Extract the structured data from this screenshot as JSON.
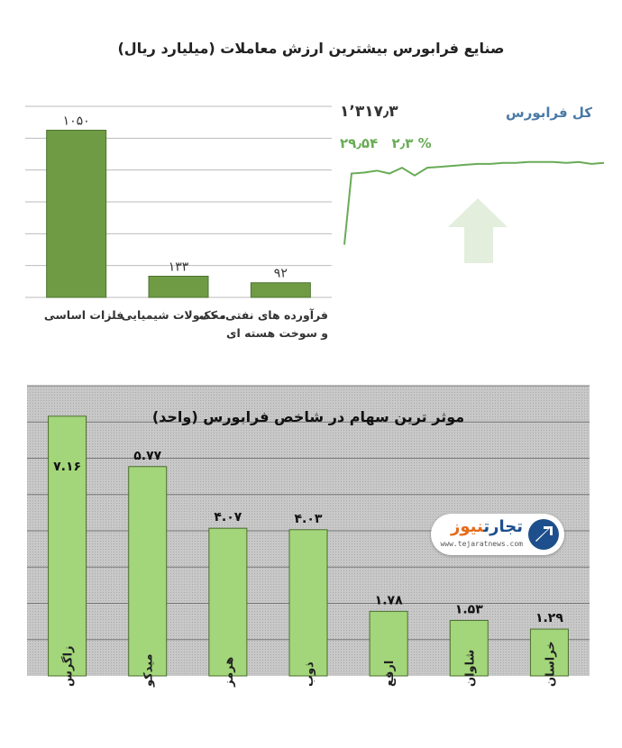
{
  "page_title": "صنایع فرابورس بیشترین ارزش معاملات (میلیارد ریال)",
  "index_panel": {
    "label": "کل فرابورس",
    "value": "۱٬۳۱۷٫۳",
    "change": "۲۹٫۵۴",
    "change_pct": "۲٫۳ %",
    "colors": {
      "line": "#69ab57",
      "arrow": "#e3eedd",
      "label": "#4a79a5"
    }
  },
  "chart_data": [
    {
      "type": "bar",
      "categories": [
        "فلزات اساسی",
        "محصولات شیمیایی",
        "فرآورده های نفتی، کک و سوخت هسته ای"
      ],
      "values": [
        1050,
        133,
        92
      ],
      "value_labels": [
        "۱۰۵۰",
        "۱۳۳",
        "۹۲"
      ],
      "ylim": [
        0,
        1200
      ],
      "grid": true,
      "colors": {
        "bar": "#6f9b45",
        "bar_edge": "#4d7330",
        "grid": "#bbbbbb"
      }
    },
    {
      "type": "line",
      "series": [
        {
          "values": [
            1188,
            1262,
            1263,
            1265,
            1262,
            1268,
            1260,
            1268,
            1269,
            1270,
            1271,
            1272,
            1272,
            1273,
            1273,
            1274,
            1274,
            1274,
            1273,
            1274,
            1272,
            1273
          ]
        }
      ],
      "grid": false
    },
    {
      "type": "bar",
      "title": "موثر ترین سهام در شاخص فرابورس (واحد)",
      "categories": [
        "زاگرس",
        "میدکو",
        "هرمز",
        "ذوب",
        "ارفع",
        "شاوان",
        "خراسان"
      ],
      "values": [
        7.16,
        5.77,
        4.07,
        4.03,
        1.78,
        1.53,
        1.29
      ],
      "value_labels": [
        "۷.۱۶",
        "۵.۷۷",
        "۴.۰۷",
        "۴.۰۳",
        "۱.۷۸",
        "۱.۵۳",
        "۱.۲۹"
      ],
      "ylim": [
        0,
        8
      ],
      "grid": true,
      "colors": {
        "bar": "#a3d67a",
        "bar_edge": "#4a6e2c",
        "background": "#c8c8c8",
        "grid": "#777777"
      }
    }
  ],
  "logo": {
    "text_main": "تجارت",
    "text_accent": "نیوز",
    "url": "www.tejaratnews.com"
  }
}
